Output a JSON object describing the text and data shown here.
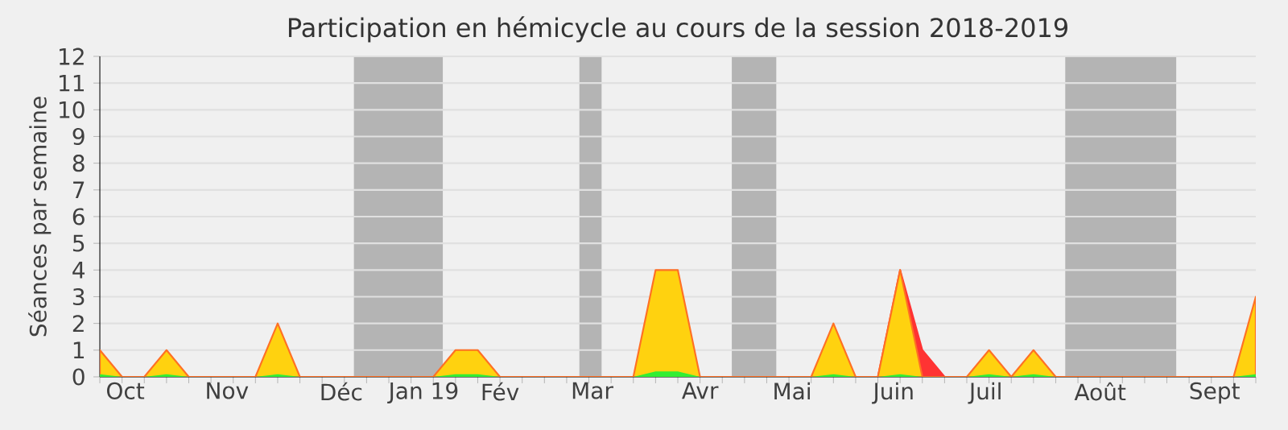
{
  "chart_data": {
    "type": "area",
    "title": "Participation en hémicycle au cours de la session 2018-2019",
    "ylabel": "Séances par semaine",
    "x": [
      "2018-10-01",
      "2018-10-08",
      "2018-10-15",
      "2018-10-22",
      "2018-10-29",
      "2018-11-05",
      "2018-11-12",
      "2018-11-19",
      "2018-11-26",
      "2018-12-03",
      "2018-12-10",
      "2018-12-17",
      "2018-12-24",
      "2018-12-31",
      "2019-01-07",
      "2019-01-14",
      "2019-01-21",
      "2019-01-28",
      "2019-02-04",
      "2019-02-11",
      "2019-02-18",
      "2019-02-25",
      "2019-03-04",
      "2019-03-11",
      "2019-03-18",
      "2019-03-25",
      "2019-04-01",
      "2019-04-08",
      "2019-04-15",
      "2019-04-22",
      "2019-04-29",
      "2019-05-06",
      "2019-05-13",
      "2019-05-20",
      "2019-05-27",
      "2019-06-03",
      "2019-06-10",
      "2019-06-17",
      "2019-06-24",
      "2019-07-01",
      "2019-07-08",
      "2019-07-15",
      "2019-07-22",
      "2019-07-29",
      "2019-08-05",
      "2019-08-12",
      "2019-08-19",
      "2019-08-26",
      "2019-09-02",
      "2019-09-09",
      "2019-09-16",
      "2019-09-23",
      "2019-09-30"
    ],
    "series": [
      {
        "color": "#ff3333",
        "values": [
          null,
          null,
          null,
          null,
          null,
          null,
          null,
          null,
          null,
          null,
          null,
          null,
          null,
          null,
          null,
          null,
          null,
          null,
          null,
          null,
          null,
          null,
          null,
          null,
          null,
          null,
          null,
          null,
          null,
          null,
          null,
          null,
          null,
          null,
          null,
          0,
          4,
          1,
          0,
          null,
          null,
          null,
          null,
          null,
          null,
          null,
          null,
          null,
          null,
          null,
          null,
          null,
          null
        ]
      },
      {
        "color": "#ffd20f",
        "values": [
          1,
          0,
          0,
          1,
          0,
          0,
          0,
          0,
          2,
          0,
          0,
          0,
          0,
          0,
          0,
          0,
          1,
          1,
          0,
          0,
          0,
          0,
          0,
          0,
          0,
          4,
          4,
          0,
          0,
          0,
          0,
          0,
          0,
          2,
          0,
          0,
          4,
          0,
          0,
          0,
          1,
          0,
          1,
          0,
          0,
          0,
          0,
          0,
          0,
          0,
          0,
          0,
          3
        ]
      },
      {
        "color": "#33ee33",
        "values": [
          0.1,
          0,
          0,
          0.1,
          0,
          0,
          0,
          0,
          0.1,
          0,
          0,
          0,
          0,
          0,
          0,
          0,
          0.1,
          0.1,
          0,
          0,
          0,
          0,
          0,
          0,
          0,
          0.2,
          0.2,
          0,
          0,
          0,
          0,
          0,
          0,
          0.1,
          0,
          0,
          0.1,
          0,
          0,
          0,
          0.1,
          0,
          0.1,
          0,
          0,
          0,
          0,
          0,
          0,
          0,
          0,
          0,
          0.1
        ]
      }
    ],
    "xlim": [
      "2018-10-01",
      "2019-09-30"
    ],
    "ylim": [
      0,
      12
    ],
    "yticks": [
      0,
      1,
      2,
      3,
      4,
      5,
      6,
      7,
      8,
      9,
      10,
      11,
      12
    ],
    "xticks": [
      {
        "value": "2018-10-09",
        "label": "Oct"
      },
      {
        "value": "2018-11-10",
        "label": "Nov"
      },
      {
        "value": "2018-12-16",
        "label": "Déc"
      },
      {
        "value": "2019-01-11",
        "label": "Jan 19"
      },
      {
        "value": "2019-02-04",
        "label": "Fév"
      },
      {
        "value": "2019-03-05",
        "label": "Mar"
      },
      {
        "value": "2019-04-08",
        "label": "Avr"
      },
      {
        "value": "2019-05-07",
        "label": "Mai"
      },
      {
        "value": "2019-06-08",
        "label": "Juin"
      },
      {
        "value": "2019-07-07",
        "label": "Juil"
      },
      {
        "value": "2019-08-12",
        "label": "Août"
      },
      {
        "value": "2019-09-17",
        "label": "Sept"
      },
      {
        "value": "2018-10-01",
        "label": null
      },
      {
        "value": "2018-10-08",
        "label": null
      },
      {
        "value": "2018-10-15",
        "label": null
      },
      {
        "value": "2018-10-22",
        "label": null
      },
      {
        "value": "2018-10-29",
        "label": null
      },
      {
        "value": "2018-11-05",
        "label": null
      },
      {
        "value": "2018-11-12",
        "label": null
      },
      {
        "value": "2018-11-19",
        "label": null
      },
      {
        "value": "2018-11-26",
        "label": null
      },
      {
        "value": "2018-12-03",
        "label": null
      },
      {
        "value": "2018-12-10",
        "label": null
      },
      {
        "value": "2018-12-17",
        "label": null
      },
      {
        "value": "2018-12-24",
        "label": null
      },
      {
        "value": "2018-12-31",
        "label": null
      },
      {
        "value": "2019-01-07",
        "label": null
      },
      {
        "value": "2019-01-14",
        "label": null
      },
      {
        "value": "2019-01-21",
        "label": null
      },
      {
        "value": "2019-01-28",
        "label": null
      },
      {
        "value": "2019-02-04",
        "label": null
      },
      {
        "value": "2019-02-11",
        "label": null
      },
      {
        "value": "2019-02-18",
        "label": null
      },
      {
        "value": "2019-02-25",
        "label": null
      },
      {
        "value": "2019-03-04",
        "label": null
      },
      {
        "value": "2019-03-11",
        "label": null
      },
      {
        "value": "2019-03-18",
        "label": null
      },
      {
        "value": "2019-03-25",
        "label": null
      },
      {
        "value": "2019-04-01",
        "label": null
      },
      {
        "value": "2019-04-08",
        "label": null
      },
      {
        "value": "2019-04-15",
        "label": null
      },
      {
        "value": "2019-04-22",
        "label": null
      },
      {
        "value": "2019-04-29",
        "label": null
      },
      {
        "value": "2019-05-06",
        "label": null
      },
      {
        "value": "2019-05-13",
        "label": null
      },
      {
        "value": "2019-05-20",
        "label": null
      },
      {
        "value": "2019-05-27",
        "label": null
      },
      {
        "value": "2019-06-03",
        "label": null
      },
      {
        "value": "2019-06-10",
        "label": null
      },
      {
        "value": "2019-06-17",
        "label": null
      },
      {
        "value": "2019-06-24",
        "label": null
      },
      {
        "value": "2019-07-01",
        "label": null
      },
      {
        "value": "2019-07-08",
        "label": null
      },
      {
        "value": "2019-07-15",
        "label": null
      },
      {
        "value": "2019-07-22",
        "label": null
      },
      {
        "value": "2019-07-29",
        "label": null
      },
      {
        "value": "2019-08-05",
        "label": null
      },
      {
        "value": "2019-08-12",
        "label": null
      },
      {
        "value": "2019-08-19",
        "label": null
      },
      {
        "value": "2019-08-26",
        "label": null
      },
      {
        "value": "2019-09-02",
        "label": null
      },
      {
        "value": "2019-09-09",
        "label": null
      },
      {
        "value": "2019-09-16",
        "label": null
      },
      {
        "value": "2019-09-23",
        "label": null
      },
      {
        "value": "2019-09-30",
        "label": null
      }
    ],
    "bands": [
      {
        "axis": "x",
        "from": "2018-12-20",
        "to": "2019-01-17",
        "color": "#b4b4b4"
      },
      {
        "axis": "x",
        "from": "2019-03-01",
        "to": "2019-03-08",
        "color": "#b4b4b4"
      },
      {
        "axis": "x",
        "from": "2019-04-18",
        "to": "2019-05-02",
        "color": "#b4b4b4"
      },
      {
        "axis": "x",
        "from": "2019-08-01",
        "to": "2019-09-05",
        "color": "#b4b4b4"
      }
    ],
    "grid": "y"
  }
}
